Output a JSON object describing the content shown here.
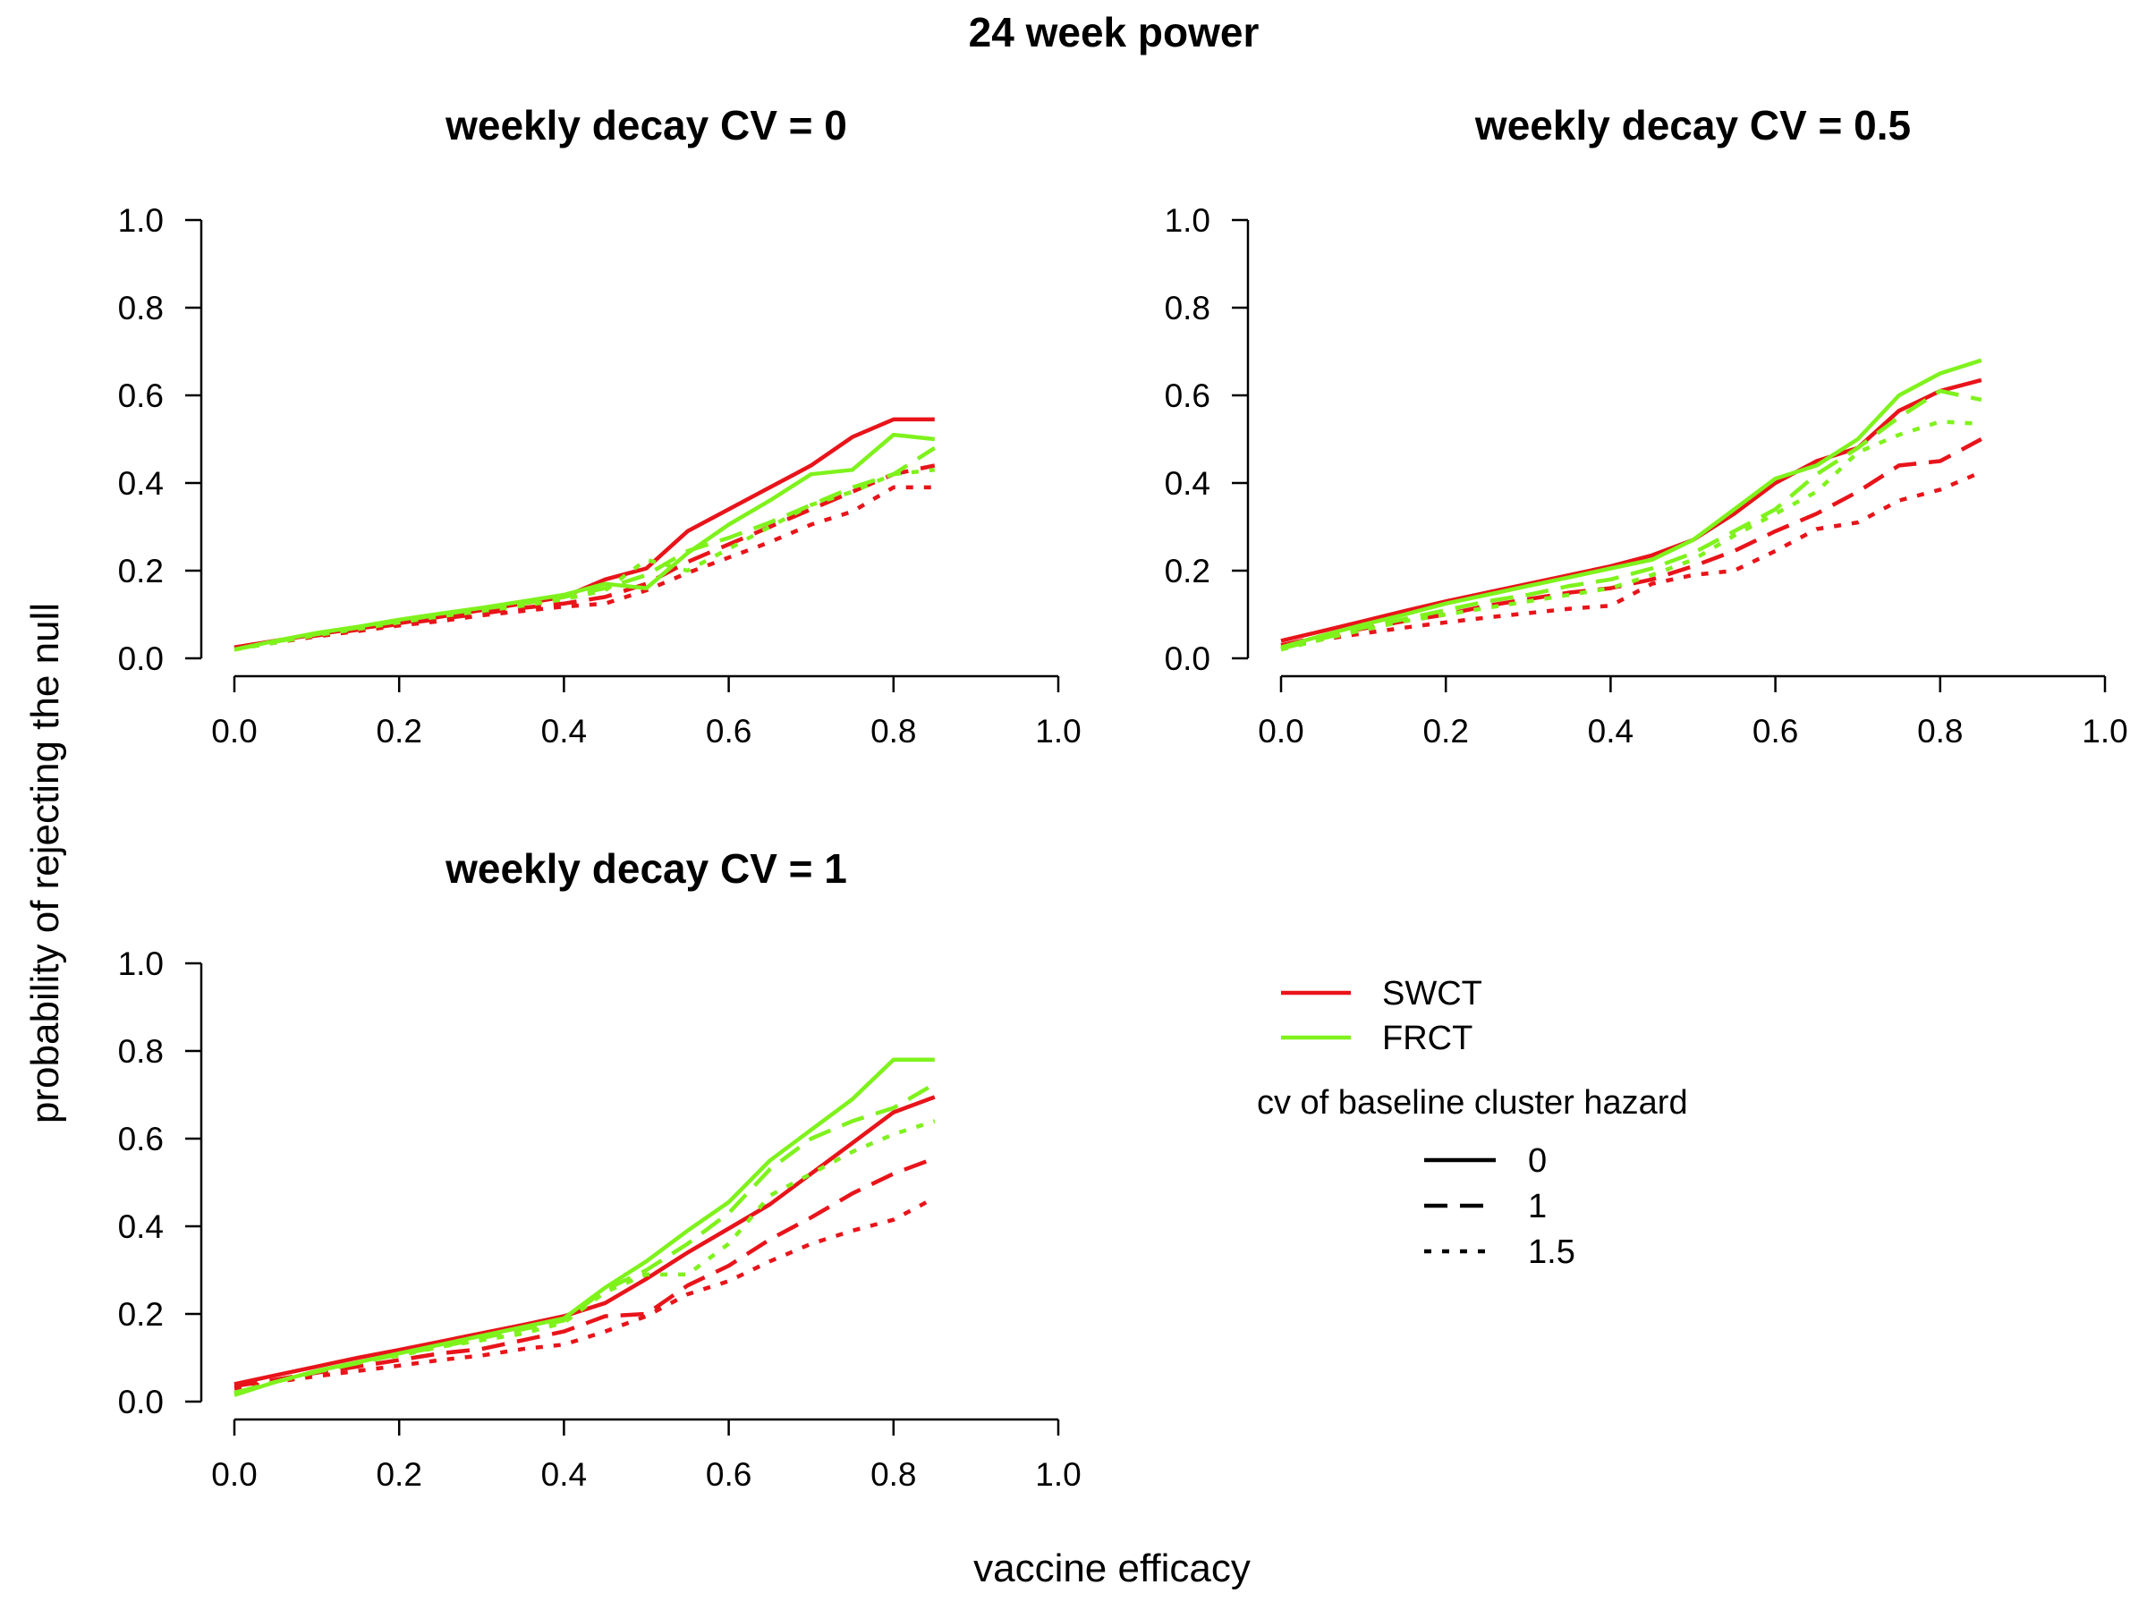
{
  "chart_data": {
    "type": "line",
    "title": "24 week power",
    "xlabel": "vaccine efficacy",
    "ylabel": "probability of rejecting the null",
    "xlim": [
      0,
      1
    ],
    "ylim": [
      0,
      1
    ],
    "xticks": [
      "0.0",
      "0.2",
      "0.4",
      "0.6",
      "0.8",
      "1.0"
    ],
    "yticks": [
      "0.0",
      "0.2",
      "0.4",
      "0.6",
      "0.8",
      "1.0"
    ],
    "grid": false,
    "colors": {
      "SWCT": "#e8141a",
      "FRCT": "#7ff21c"
    },
    "legend": {
      "placement": "bottom-right",
      "designs": [
        "SWCT",
        "FRCT"
      ],
      "cv_title": "cv of baseline cluster hazard",
      "cv_levels": [
        "0",
        "1",
        "1.5"
      ]
    },
    "x": [
      0.0,
      0.05,
      0.1,
      0.15,
      0.2,
      0.25,
      0.3,
      0.35,
      0.4,
      0.45,
      0.5,
      0.55,
      0.6,
      0.65,
      0.7,
      0.75,
      0.8,
      0.85
    ],
    "panels": [
      {
        "title": "weekly decay CV = 0",
        "series": [
          {
            "design": "SWCT",
            "cv": "0",
            "values": [
              0.025,
              0.04,
              0.055,
              0.068,
              0.08,
              0.095,
              0.11,
              0.125,
              0.14,
              0.18,
              0.205,
              0.29,
              0.34,
              0.39,
              0.44,
              0.505,
              0.545,
              0.545
            ]
          },
          {
            "design": "SWCT",
            "cv": "1",
            "values": [
              0.025,
              0.04,
              0.052,
              0.065,
              0.078,
              0.09,
              0.102,
              0.115,
              0.125,
              0.14,
              0.17,
              0.22,
              0.26,
              0.3,
              0.34,
              0.38,
              0.42,
              0.44
            ]
          },
          {
            "design": "SWCT",
            "cv": "1.5",
            "values": [
              0.022,
              0.036,
              0.05,
              0.062,
              0.075,
              0.085,
              0.098,
              0.108,
              0.118,
              0.125,
              0.155,
              0.195,
              0.23,
              0.265,
              0.305,
              0.335,
              0.39,
              0.39
            ]
          },
          {
            "design": "FRCT",
            "cv": "0",
            "values": [
              0.02,
              0.04,
              0.058,
              0.072,
              0.088,
              0.102,
              0.115,
              0.13,
              0.145,
              0.17,
              0.16,
              0.24,
              0.305,
              0.36,
              0.42,
              0.43,
              0.51,
              0.5
            ]
          },
          {
            "design": "FRCT",
            "cv": "1",
            "values": [
              0.02,
              0.038,
              0.055,
              0.07,
              0.085,
              0.1,
              0.113,
              0.125,
              0.14,
              0.16,
              0.19,
              0.245,
              0.275,
              0.31,
              0.35,
              0.39,
              0.42,
              0.48
            ]
          },
          {
            "design": "FRCT",
            "cv": "1.5",
            "values": [
              0.02,
              0.036,
              0.053,
              0.067,
              0.082,
              0.096,
              0.108,
              0.12,
              0.135,
              0.155,
              0.225,
              0.2,
              0.25,
              0.3,
              0.35,
              0.38,
              0.42,
              0.43
            ]
          }
        ]
      },
      {
        "title": "weekly decay CV = 0.5",
        "series": [
          {
            "design": "SWCT",
            "cv": "0",
            "values": [
              0.04,
              0.062,
              0.085,
              0.108,
              0.13,
              0.15,
              0.17,
              0.19,
              0.21,
              0.235,
              0.27,
              0.33,
              0.4,
              0.45,
              0.48,
              0.565,
              0.61,
              0.635
            ]
          },
          {
            "design": "SWCT",
            "cv": "1",
            "values": [
              0.03,
              0.05,
              0.068,
              0.085,
              0.1,
              0.12,
              0.135,
              0.15,
              0.16,
              0.18,
              0.21,
              0.245,
              0.29,
              0.33,
              0.38,
              0.44,
              0.45,
              0.5
            ]
          },
          {
            "design": "SWCT",
            "cv": "1.5",
            "values": [
              0.025,
              0.043,
              0.057,
              0.07,
              0.082,
              0.093,
              0.103,
              0.113,
              0.12,
              0.17,
              0.19,
              0.2,
              0.245,
              0.295,
              0.31,
              0.36,
              0.385,
              0.425
            ]
          },
          {
            "design": "FRCT",
            "cv": "0",
            "values": [
              0.025,
              0.052,
              0.077,
              0.1,
              0.125,
              0.145,
              0.165,
              0.185,
              0.205,
              0.225,
              0.27,
              0.34,
              0.41,
              0.44,
              0.5,
              0.6,
              0.65,
              0.68
            ]
          },
          {
            "design": "FRCT",
            "cv": "1",
            "values": [
              0.022,
              0.045,
              0.07,
              0.09,
              0.11,
              0.13,
              0.145,
              0.165,
              0.18,
              0.205,
              0.24,
              0.29,
              0.34,
              0.42,
              0.48,
              0.55,
              0.61,
              0.59
            ]
          },
          {
            "design": "FRCT",
            "cv": "1.5",
            "values": [
              0.02,
              0.043,
              0.065,
              0.085,
              0.1,
              0.115,
              0.13,
              0.145,
              0.16,
              0.19,
              0.225,
              0.28,
              0.33,
              0.38,
              0.47,
              0.51,
              0.54,
              0.535
            ]
          }
        ]
      },
      {
        "title": "weekly decay CV = 1",
        "series": [
          {
            "design": "SWCT",
            "cv": "0",
            "values": [
              0.04,
              0.06,
              0.08,
              0.1,
              0.118,
              0.137,
              0.156,
              0.175,
              0.195,
              0.225,
              0.28,
              0.34,
              0.395,
              0.45,
              0.52,
              0.59,
              0.66,
              0.695
            ]
          },
          {
            "design": "SWCT",
            "cv": "1",
            "values": [
              0.035,
              0.05,
              0.066,
              0.08,
              0.095,
              0.11,
              0.12,
              0.14,
              0.16,
              0.195,
              0.2,
              0.265,
              0.31,
              0.37,
              0.42,
              0.475,
              0.52,
              0.555
            ]
          },
          {
            "design": "SWCT",
            "cv": "1.5",
            "values": [
              0.03,
              0.045,
              0.058,
              0.07,
              0.082,
              0.095,
              0.105,
              0.12,
              0.13,
              0.16,
              0.195,
              0.245,
              0.275,
              0.32,
              0.36,
              0.39,
              0.415,
              0.465
            ]
          },
          {
            "design": "FRCT",
            "cv": "0",
            "values": [
              0.015,
              0.045,
              0.07,
              0.09,
              0.11,
              0.13,
              0.15,
              0.17,
              0.19,
              0.26,
              0.32,
              0.39,
              0.455,
              0.55,
              0.62,
              0.69,
              0.78,
              0.78
            ]
          },
          {
            "design": "FRCT",
            "cv": "1",
            "values": [
              0.02,
              0.045,
              0.068,
              0.088,
              0.108,
              0.125,
              0.145,
              0.165,
              0.185,
              0.255,
              0.3,
              0.36,
              0.43,
              0.53,
              0.6,
              0.64,
              0.67,
              0.725
            ]
          },
          {
            "design": "FRCT",
            "cv": "1.5",
            "values": [
              0.02,
              0.045,
              0.07,
              0.09,
              0.105,
              0.125,
              0.14,
              0.155,
              0.18,
              0.25,
              0.29,
              0.29,
              0.36,
              0.47,
              0.52,
              0.57,
              0.61,
              0.64
            ]
          }
        ]
      }
    ]
  }
}
